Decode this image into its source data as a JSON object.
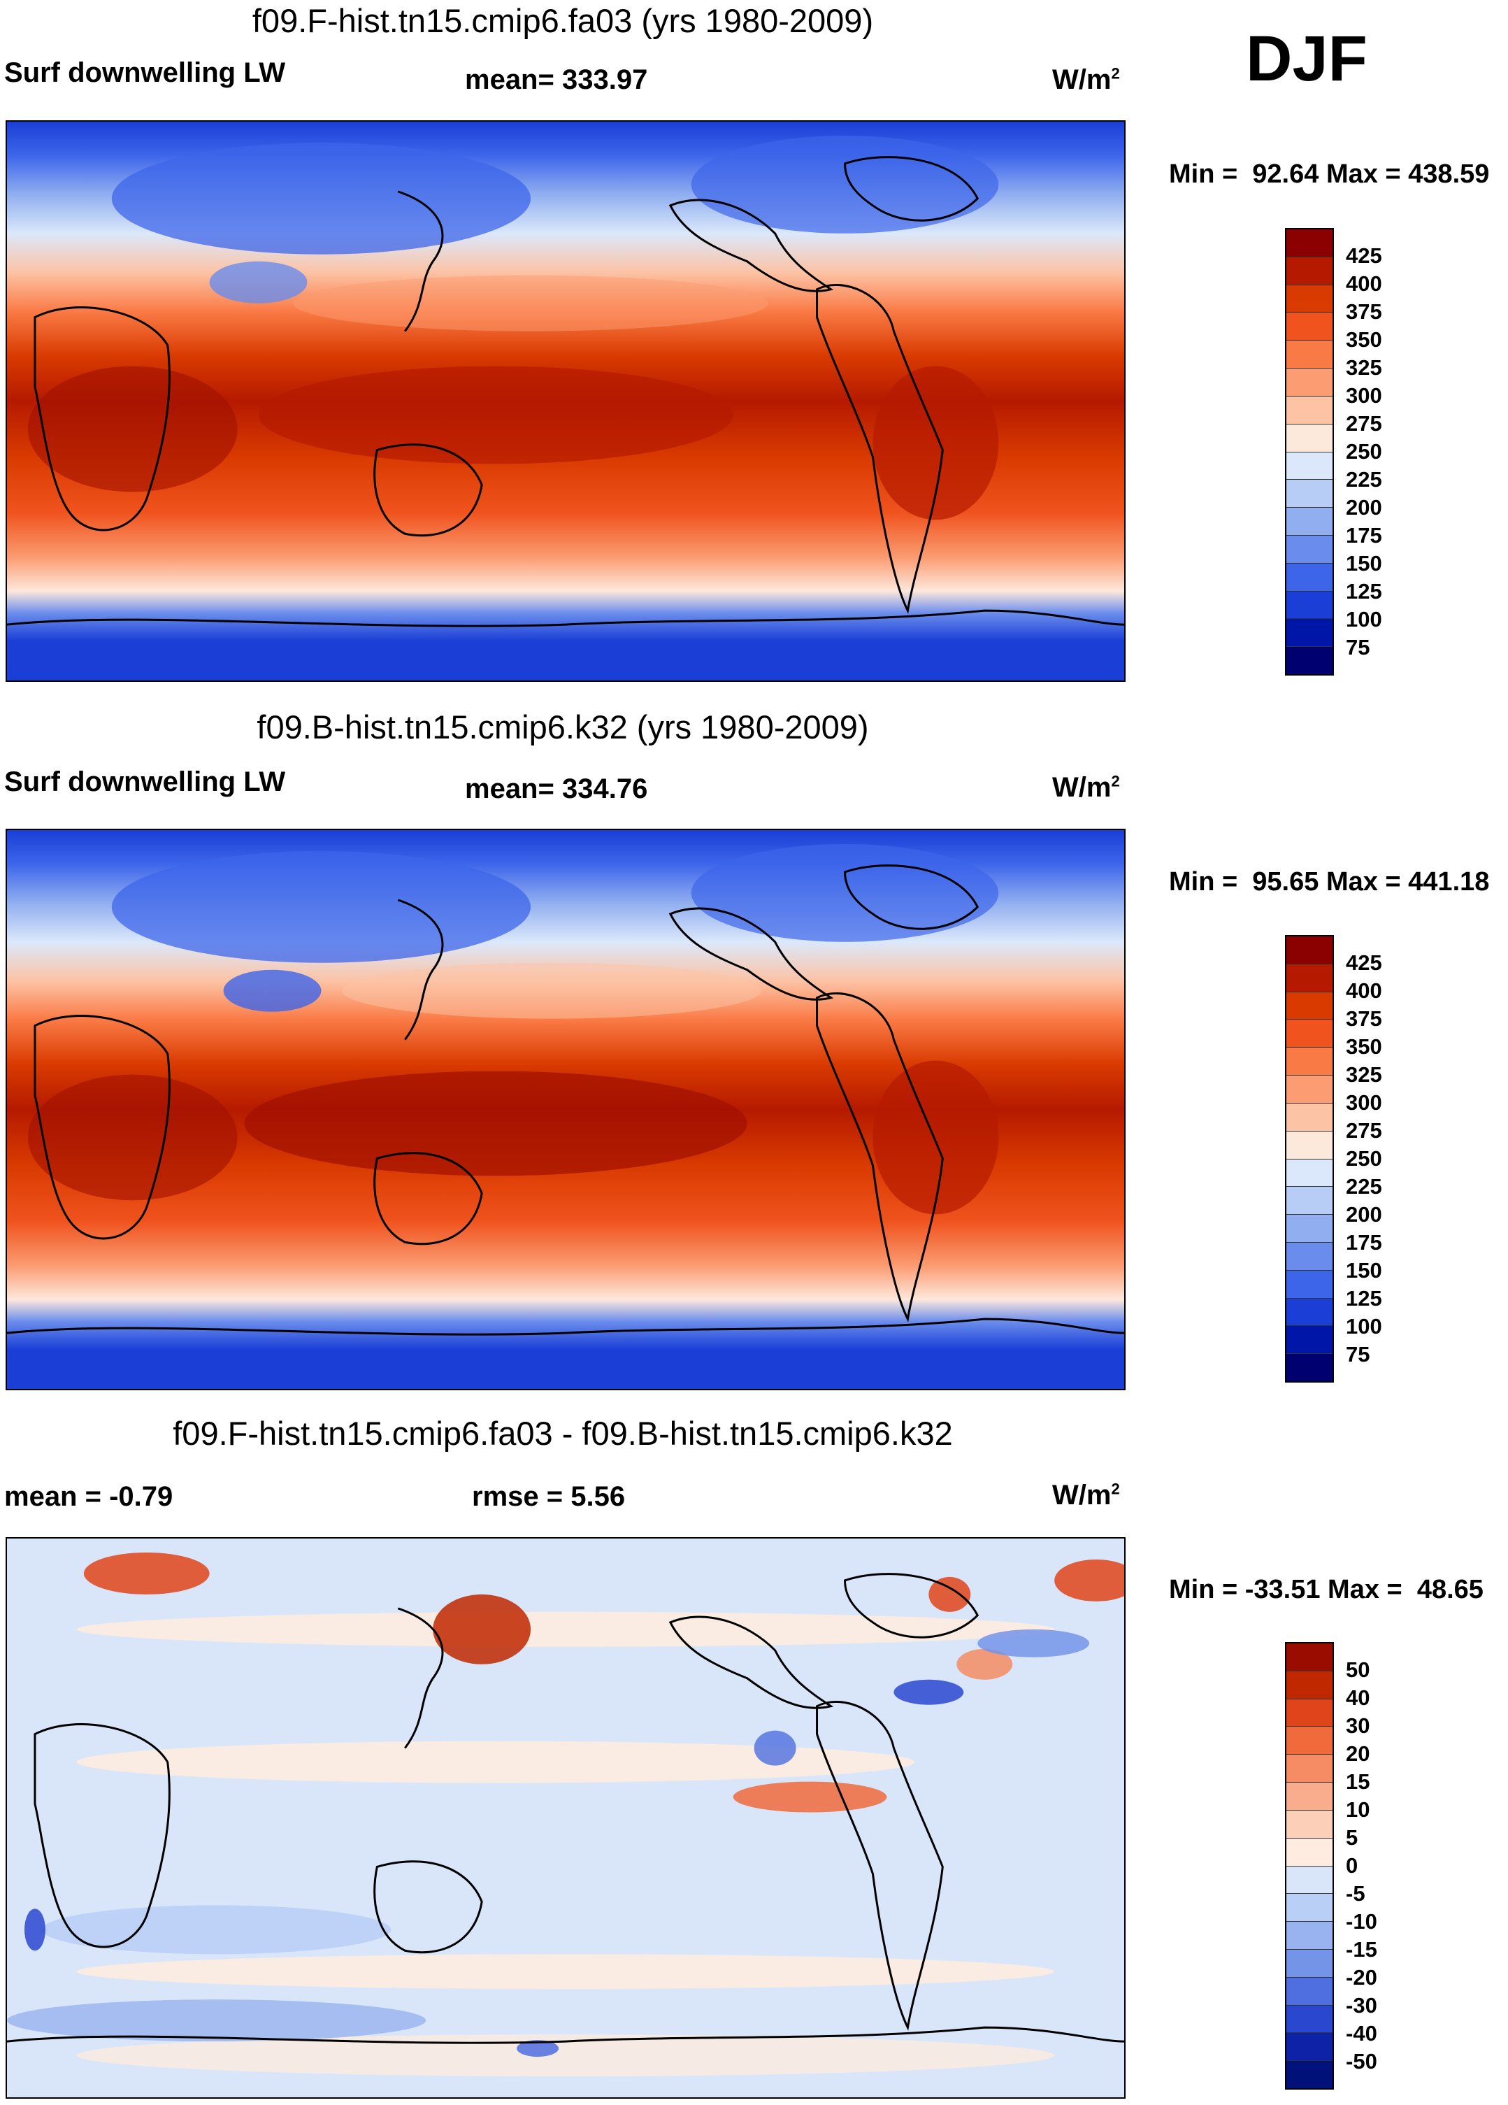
{
  "season": "DJF",
  "units_label": "W/m",
  "units_sup": "2",
  "panels": [
    {
      "title": "f09.F-hist.tn15.cmip6.fa03 (yrs 1980-2009)",
      "left_label": "Surf downwelling LW",
      "stat_label": "mean= 333.97",
      "minmax": "Min =  92.64 Max = 438.59",
      "kind": "field",
      "levels": [
        "425",
        "400",
        "375",
        "350",
        "325",
        "300",
        "275",
        "250",
        "225",
        "200",
        "175",
        "150",
        "125",
        "100",
        "75"
      ]
    },
    {
      "title": "f09.B-hist.tn15.cmip6.k32 (yrs 1980-2009)",
      "left_label": "Surf downwelling LW",
      "stat_label": "mean= 334.76",
      "minmax": "Min =  95.65 Max = 441.18",
      "kind": "field",
      "levels": [
        "425",
        "400",
        "375",
        "350",
        "325",
        "300",
        "275",
        "250",
        "225",
        "200",
        "175",
        "150",
        "125",
        "100",
        "75"
      ]
    },
    {
      "title": "f09.F-hist.tn15.cmip6.fa03 - f09.B-hist.tn15.cmip6.k32",
      "left_label": "mean =  -0.79",
      "stat_label": "rmse =   5.56",
      "minmax": "Min = -33.51 Max =  48.65",
      "kind": "diff",
      "levels": [
        "50",
        "40",
        "30",
        "20",
        "15",
        "10",
        "5",
        "0",
        "-5",
        "-10",
        "-15",
        "-20",
        "-30",
        "-40",
        "-50"
      ]
    }
  ],
  "colors": {
    "field_scale": [
      "#8b0000",
      "#b51a00",
      "#d93a00",
      "#f0531e",
      "#fa7a45",
      "#fb9c72",
      "#fcc3a5",
      "#fde8dc",
      "#dbe8fb",
      "#b7cdf6",
      "#90aef0",
      "#6a8cec",
      "#3d65ea",
      "#1a3ed6",
      "#0016a8",
      "#000070"
    ],
    "diff_scale": [
      "#9a0c00",
      "#c02800",
      "#e0441a",
      "#f06a3c",
      "#f58c63",
      "#f9ad8c",
      "#fcd0b8",
      "#fdecdf",
      "#d9e6fa",
      "#b9cff5",
      "#98b3ef",
      "#7494e8",
      "#4f6fe0",
      "#2a47cf",
      "#0e22a8",
      "#00127a"
    ]
  }
}
